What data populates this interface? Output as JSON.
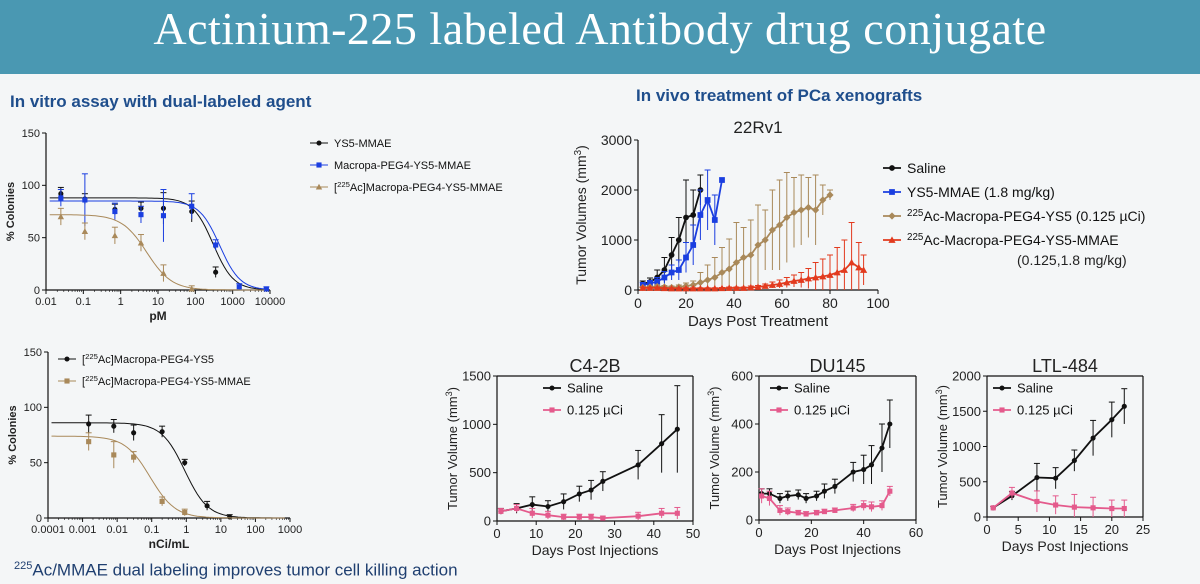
{
  "banner": {
    "title": "Actinium-225 labeled Antibody drug conjugate"
  },
  "headings": {
    "invitro": "In vitro assay with dual-labeled agent",
    "invivo": "In vivo treatment of PCa xenografts"
  },
  "footer": {
    "sup": "225",
    "text": "Ac/MMAE dual labeling improves tumor cell killing action"
  },
  "colors": {
    "banner": "#4a98b2",
    "black": "#111111",
    "blue": "#1a3ee0",
    "tan": "#a9895a",
    "red": "#e23a1e",
    "pink": "#e45a8c"
  },
  "chart_data": [
    {
      "id": "A",
      "type": "scatter",
      "xscale": "log",
      "xlim": [
        0.01,
        10000
      ],
      "xticks": [
        "0.01",
        "0.1",
        "1",
        "10",
        "100",
        "1000",
        "10000"
      ],
      "xlabel": "pM",
      "ylabel": "% Colonies",
      "ylim": [
        0,
        150
      ],
      "yticks": [
        "0",
        "50",
        "100",
        "150"
      ],
      "legend_position": "right",
      "series": [
        {
          "name": "YS5-MMAE",
          "color": "#111111",
          "marker": "circle",
          "x": [
            0.025,
            0.11,
            0.7,
            3.5,
            14,
            80,
            350
          ],
          "y": [
            92,
            87,
            77,
            78,
            78,
            75,
            17
          ],
          "err": [
            6,
            5,
            5,
            6,
            15,
            10,
            5
          ],
          "fit": {
            "top": 88,
            "bottom": 0,
            "ic50": 300,
            "hill": 1.6
          }
        },
        {
          "name": "Macropa-PEG4-YS5-MMAE",
          "color": "#1a3ee0",
          "marker": "square",
          "x": [
            0.025,
            0.11,
            0.7,
            3.5,
            14,
            80,
            350,
            1500,
            8000
          ],
          "y": [
            88,
            86,
            75,
            72,
            71,
            80,
            43,
            3,
            1
          ],
          "err": [
            8,
            25,
            8,
            8,
            25,
            12,
            5,
            3,
            2
          ],
          "fit": {
            "top": 85,
            "bottom": 0,
            "ic50": 450,
            "hill": 1.6
          }
        },
        {
          "name": "[225Ac]Macropa-PEG4-YS5-MMAE",
          "sup": "225",
          "label": "Ac]Macropa-PEG4-YS5-MMAE",
          "color": "#a9895a",
          "marker": "triangle",
          "x": [
            0.025,
            0.11,
            0.7,
            3.5,
            14,
            80
          ],
          "y": [
            70,
            56,
            52,
            45,
            16,
            1
          ],
          "err": [
            8,
            8,
            8,
            8,
            8,
            3
          ],
          "fit": {
            "top": 72,
            "bottom": 0,
            "ic50": 5,
            "hill": 1.3
          }
        }
      ]
    },
    {
      "id": "B",
      "type": "scatter",
      "xscale": "log",
      "xlim": [
        0.0001,
        1000
      ],
      "xticks": [
        "0.0001",
        "0.001",
        "0.01",
        "0.1",
        "1",
        "10",
        "100",
        "1000"
      ],
      "xlabel": "nCi/mL",
      "ylabel": "% Colonies",
      "ylim": [
        0,
        150
      ],
      "yticks": [
        "0",
        "50",
        "100",
        "150"
      ],
      "legend_position": "top-right",
      "series": [
        {
          "name": "[225Ac]Macropa-PEG4-YS5",
          "sup": "225",
          "label": "Ac]Macropa-PEG4-YS5",
          "color": "#111111",
          "marker": "circle",
          "x": [
            0.0015,
            0.008,
            0.03,
            0.2,
            0.9,
            4,
            18
          ],
          "y": [
            85,
            83,
            77,
            78,
            50,
            11,
            1
          ],
          "err": [
            8,
            6,
            7,
            5,
            3,
            4,
            2
          ],
          "fit": {
            "top": 86,
            "bottom": 0,
            "ic50": 0.9,
            "hill": 1.3
          }
        },
        {
          "name": "[225Ac]Macropa-PEG4-YS5-MMAE",
          "sup": "225",
          "label": "Ac]Macropa-PEG4-YS5-MMAE",
          "color": "#a9895a",
          "marker": "square",
          "x": [
            0.0015,
            0.008,
            0.03,
            0.2,
            0.9
          ],
          "y": [
            69,
            57,
            55,
            15,
            5
          ],
          "err": [
            8,
            12,
            5,
            4,
            3
          ],
          "fit": {
            "top": 74,
            "bottom": 0,
            "ic50": 0.09,
            "hill": 1.2
          }
        }
      ]
    },
    {
      "id": "C",
      "type": "line",
      "title": "22Rv1",
      "xlabel": "Days Post Treatment",
      "ylabel": "Tumor Volumes (mm",
      "ylabel_sup": "3",
      "ylabel_end": ")",
      "xlim": [
        0,
        100
      ],
      "ylim": [
        0,
        3000
      ],
      "xticks": [
        "0",
        "20",
        "40",
        "60",
        "80",
        "100"
      ],
      "yticks": [
        "0",
        "1000",
        "2000",
        "3000"
      ],
      "legend_position": "right",
      "series": [
        {
          "name": "Saline",
          "color": "#111111",
          "marker": "circle",
          "x": [
            2,
            5,
            8,
            11,
            14,
            17,
            20,
            23,
            26
          ],
          "y": [
            120,
            160,
            250,
            400,
            700,
            1000,
            1450,
            1500,
            2000
          ],
          "err": [
            60,
            80,
            150,
            250,
            350,
            450,
            750,
            500,
            300
          ]
        },
        {
          "name": "YS5-MMAE (1.8 mg/kg)",
          "color": "#1a3ee0",
          "marker": "square",
          "x": [
            2,
            5,
            8,
            11,
            14,
            17,
            20,
            23,
            26,
            29,
            32,
            35
          ],
          "y": [
            100,
            130,
            170,
            250,
            350,
            400,
            650,
            900,
            1500,
            1800,
            1400,
            2200
          ],
          "err": [
            50,
            60,
            80,
            120,
            150,
            200,
            300,
            400,
            500,
            600,
            500,
            0
          ]
        },
        {
          "name": "225Ac-Macropa-PEG4-YS5 (0.125 µCi)",
          "sup": "225",
          "label": "Ac-Macropa-PEG4-YS5 (0.125 µCi)",
          "color": "#a9895a",
          "marker": "diamond",
          "x": [
            2,
            5,
            8,
            11,
            14,
            17,
            20,
            23,
            26,
            29,
            32,
            35,
            38,
            41,
            44,
            47,
            50,
            53,
            56,
            59,
            62,
            65,
            68,
            71,
            74,
            77,
            80
          ],
          "y": [
            50,
            60,
            70,
            60,
            50,
            60,
            80,
            100,
            150,
            200,
            250,
            350,
            420,
            550,
            650,
            700,
            900,
            1000,
            1200,
            1300,
            1450,
            1550,
            1600,
            1650,
            1600,
            1800,
            1900
          ],
          "err": [
            20,
            20,
            30,
            30,
            30,
            40,
            60,
            80,
            200,
            300,
            400,
            500,
            600,
            800,
            600,
            700,
            800,
            600,
            800,
            900,
            900,
            700,
            700,
            600,
            700,
            300,
            100
          ]
        },
        {
          "name": "225Ac-Macropa-PEG4-YS5-MMAE (0.125,1.8 mg/kg)",
          "sup": "225",
          "label": "Ac-Macropa-PEG4-YS5-MMAE",
          "label2": "(0.125,1.8 mg/kg)",
          "color": "#e23a1e",
          "marker": "triangle",
          "x": [
            2,
            5,
            8,
            11,
            14,
            17,
            20,
            23,
            26,
            29,
            32,
            35,
            38,
            41,
            44,
            47,
            50,
            53,
            56,
            59,
            62,
            65,
            68,
            71,
            74,
            77,
            80,
            83,
            86,
            89,
            92,
            94
          ],
          "y": [
            40,
            40,
            40,
            35,
            30,
            30,
            30,
            30,
            30,
            30,
            30,
            35,
            40,
            40,
            40,
            50,
            60,
            80,
            100,
            120,
            150,
            180,
            200,
            230,
            250,
            270,
            300,
            350,
            400,
            550,
            450,
            400
          ],
          "err": [
            20,
            20,
            20,
            15,
            15,
            15,
            15,
            15,
            15,
            15,
            15,
            15,
            20,
            20,
            20,
            30,
            30,
            40,
            60,
            80,
            100,
            120,
            150,
            200,
            300,
            350,
            400,
            500,
            600,
            800,
            500,
            300
          ]
        }
      ]
    },
    {
      "id": "D",
      "type": "line",
      "title": "C4-2B",
      "xlabel": "Days Post Injections",
      "ylabel": "Tumor Volume (mm",
      "ylabel_sup": "3",
      "ylabel_end": ")",
      "xlim": [
        0,
        50
      ],
      "ylim": [
        0,
        1500
      ],
      "xticks": [
        "0",
        "10",
        "20",
        "30",
        "40",
        "50"
      ],
      "yticks": [
        "0",
        "500",
        "1000",
        "1500"
      ],
      "legend_position": "top-left",
      "series": [
        {
          "name": "Saline",
          "color": "#111111",
          "marker": "circle",
          "x": [
            1,
            5,
            9,
            13,
            17,
            21,
            24,
            27,
            36,
            42,
            46
          ],
          "y": [
            100,
            130,
            170,
            150,
            200,
            280,
            320,
            410,
            580,
            800,
            950
          ],
          "err": [
            30,
            50,
            80,
            60,
            80,
            80,
            100,
            100,
            150,
            300,
            450
          ]
        },
        {
          "name": "0.125 µCi",
          "color": "#e45a8c",
          "marker": "square",
          "x": [
            1,
            5,
            9,
            13,
            17,
            21,
            24,
            27,
            36,
            42,
            46
          ],
          "y": [
            100,
            130,
            80,
            60,
            40,
            40,
            40,
            30,
            50,
            80,
            80
          ],
          "err": [
            30,
            40,
            50,
            40,
            30,
            30,
            30,
            20,
            40,
            50,
            60
          ]
        }
      ]
    },
    {
      "id": "E",
      "type": "line",
      "title": "DU145",
      "xlabel": "Days Post Injections",
      "ylabel": "Tumor Volume (mm",
      "ylabel_sup": "3",
      "ylabel_end": ")",
      "xlim": [
        0,
        60
      ],
      "ylim": [
        0,
        600
      ],
      "xticks": [
        "0",
        "20",
        "40",
        "60"
      ],
      "yticks": [
        "0",
        "200",
        "400",
        "600"
      ],
      "legend_position": "top-left",
      "series": [
        {
          "name": "Saline",
          "color": "#111111",
          "marker": "circle",
          "x": [
            1,
            4,
            8,
            11,
            15,
            18,
            22,
            25,
            29,
            36,
            40,
            43,
            47,
            50
          ],
          "y": [
            110,
            110,
            90,
            100,
            105,
            90,
            100,
            120,
            140,
            200,
            210,
            230,
            300,
            400
          ],
          "err": [
            20,
            20,
            20,
            20,
            20,
            20,
            20,
            30,
            30,
            40,
            60,
            80,
            100,
            100
          ]
        },
        {
          "name": "0.125 µCi",
          "color": "#e45a8c",
          "marker": "square",
          "x": [
            1,
            4,
            8,
            11,
            15,
            18,
            22,
            25,
            29,
            36,
            40,
            43,
            47,
            50
          ],
          "y": [
            100,
            90,
            40,
            35,
            30,
            25,
            30,
            35,
            40,
            50,
            60,
            55,
            60,
            120
          ],
          "err": [
            30,
            30,
            20,
            15,
            10,
            10,
            10,
            10,
            10,
            15,
            20,
            20,
            20,
            20
          ]
        }
      ]
    },
    {
      "id": "F",
      "type": "line",
      "title": "LTL-484",
      "xlabel": "Days Post Injections",
      "ylabel": "Tumor Volume (mm",
      "ylabel_sup": "3",
      "ylabel_end": ")",
      "xlim": [
        0,
        25
      ],
      "ylim": [
        0,
        2000
      ],
      "xticks": [
        "0",
        "5",
        "10",
        "15",
        "20",
        "25"
      ],
      "yticks": [
        "0",
        "500",
        "1000",
        "1500",
        "2000"
      ],
      "legend_position": "top-left",
      "series": [
        {
          "name": "Saline",
          "color": "#111111",
          "marker": "circle",
          "x": [
            1,
            4,
            8,
            11,
            14,
            17,
            20,
            22
          ],
          "y": [
            130,
            300,
            560,
            550,
            800,
            1120,
            1380,
            1570
          ],
          "err": [
            20,
            60,
            200,
            150,
            150,
            250,
            250,
            250
          ]
        },
        {
          "name": "0.125 µCi",
          "color": "#e45a8c",
          "marker": "square",
          "x": [
            1,
            4,
            8,
            11,
            14,
            17,
            20,
            22
          ],
          "y": [
            130,
            340,
            220,
            170,
            140,
            130,
            120,
            120
          ],
          "err": [
            20,
            80,
            150,
            130,
            180,
            150,
            120,
            120
          ]
        }
      ]
    }
  ]
}
